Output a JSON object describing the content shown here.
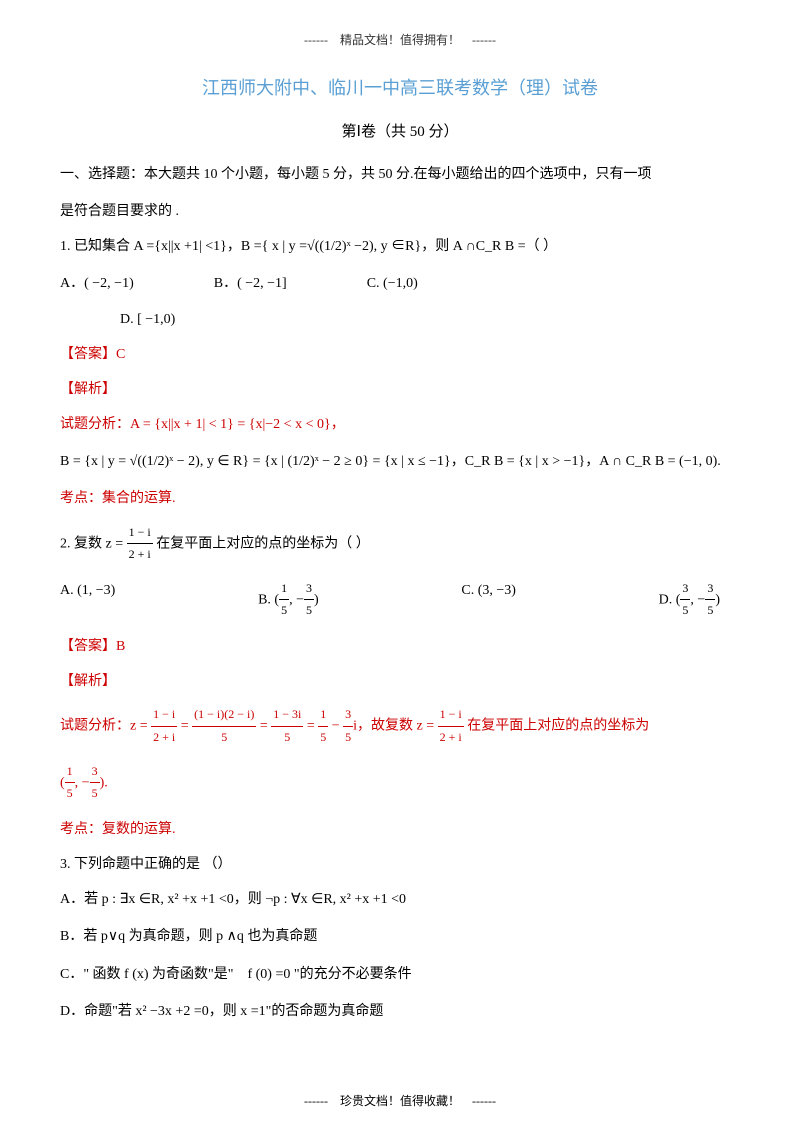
{
  "header_note": "------　精品文档！值得拥有！　------",
  "title": "江西师大附中、临川一中高三联考数学（理）试卷",
  "subtitle": "第Ⅰ卷（共 50 分）",
  "section_header_1": "一、选择题：本大题共 10 个小题，每小题 5 分，共 50 分.在每小题给出的四个选项中，只有一项",
  "section_header_2": "是符合题目要求的 .",
  "q1": {
    "text": "1. 已知集合 A ={x||x +1| <1}，B ={ x | y =√((1/2)ˣ −2), y ∈R}，则 A ∩C_R B =（  ）",
    "optA": "A．( −2, −1)",
    "optB": "B．( −2, −1]",
    "optC": "C. (−1,0)",
    "optD": "D. [ −1,0)",
    "answer": "【答案】C",
    "analysis": "【解析】",
    "analysis_text": "试题分析：A = {x||x + 1| < 1} = {x|−2 < x < 0}，",
    "formula": "B = {x | y = √((1/2)ˣ − 2), y ∈ R} = {x | (1/2)ˣ − 2 ≥ 0} = {x | x ≤ −1}，C_R B = {x | x > −1}，A ∩ C_R B = (−1, 0).",
    "topic": "考点：集合的运算."
  },
  "q2": {
    "text_prefix": "2. 复数 z = ",
    "text_suffix": " 在复平面上对应的点的坐标为（  ）",
    "optA": "A.  (1, −3)",
    "optB_prefix": "B.  (",
    "optB_suffix": ")",
    "optC": "C.  (3, −3)",
    "optD_prefix": "D.  (",
    "optD_suffix": ")",
    "answer": "【答案】B",
    "analysis": "【解析】",
    "analysis_prefix": "试题分析：z = ",
    "analysis_mid1": " = ",
    "analysis_mid2": " = ",
    "analysis_mid3": " = ",
    "analysis_mid4": " − ",
    "analysis_mid5": "i，故复数 z = ",
    "analysis_suffix": " 在复平面上对应的点的坐标为",
    "result_prefix": "(",
    "result_suffix": ").",
    "topic": "考点：复数的运算."
  },
  "q3": {
    "text": "3. 下列命题中正确的是  （）",
    "optA": "A．若 p : ∃x ∈R, x² +x +1 <0，则 ¬p : ∀x ∈R, x² +x +1 <0",
    "optB": "B．若 p∨q 为真命题，则 p ∧q 也为真命题",
    "optC": "C．\" 函数  f (x) 为奇函数\"是\"　f (0) =0 \"的充分不必要条件",
    "optD": "D．命题\"若  x² −3x +2 =0，则 x =1\"的否命题为真命题"
  },
  "footer_note": "------　珍贵文档！值得收藏！　------"
}
